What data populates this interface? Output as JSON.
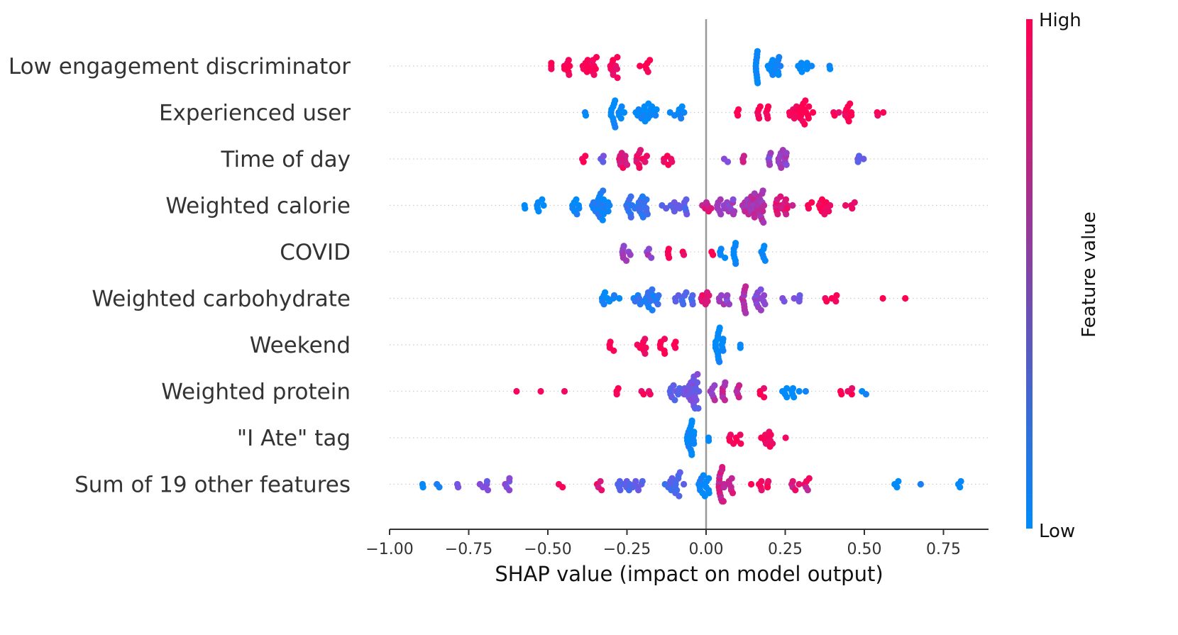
{
  "chart_data": {
    "type": "scatter",
    "subtype": "beeswarm",
    "title": "",
    "xlabel": "SHAP value (impact on model output)",
    "ylabel": "",
    "xlim": [
      -1.0,
      0.9
    ],
    "xticks": [
      -1.0,
      -0.75,
      -0.5,
      -0.25,
      0.0,
      0.25,
      0.5,
      0.75
    ],
    "xtick_labels": [
      "−1.00",
      "−0.75",
      "−0.50",
      "−0.25",
      "0.00",
      "0.25",
      "0.50",
      "0.75"
    ],
    "zero_line": true,
    "colorbar": {
      "title": "Feature value",
      "high_label": "High",
      "low_label": "Low",
      "low_color": "#008bfb",
      "high_color": "#ff0052"
    },
    "features": [
      {
        "name": "Low engagement discriminator",
        "clusters": [
          {
            "c": -0.49,
            "n": 3,
            "s": 0.003,
            "col": 1.0
          },
          {
            "c": -0.44,
            "n": 7,
            "s": 0.012,
            "col": 1.0
          },
          {
            "c": -0.37,
            "n": 14,
            "s": 0.025,
            "col": 1.0
          },
          {
            "c": -0.29,
            "n": 10,
            "s": 0.025,
            "col": 1.0
          },
          {
            "c": -0.19,
            "n": 6,
            "s": 0.02,
            "col": 1.0
          },
          {
            "c": 0.16,
            "n": 12,
            "s": 0.003,
            "col": 0.0
          },
          {
            "c": 0.22,
            "n": 14,
            "s": 0.025,
            "col": 0.0
          },
          {
            "c": 0.31,
            "n": 8,
            "s": 0.025,
            "col": 0.0
          },
          {
            "c": 0.39,
            "n": 2,
            "s": 0.003,
            "col": 0.0
          }
        ]
      },
      {
        "name": "Experienced user",
        "clusters": [
          {
            "c": -0.38,
            "n": 2,
            "s": 0.003,
            "col": 0.0
          },
          {
            "c": -0.28,
            "n": 16,
            "s": 0.025,
            "col": 0.0
          },
          {
            "c": -0.19,
            "n": 18,
            "s": 0.035,
            "col": 0.0
          },
          {
            "c": -0.09,
            "n": 8,
            "s": 0.025,
            "col": 0.0
          },
          {
            "c": 0.1,
            "n": 3,
            "s": 0.005,
            "col": 1.0
          },
          {
            "c": 0.18,
            "n": 10,
            "s": 0.025,
            "col": 1.0
          },
          {
            "c": 0.3,
            "n": 22,
            "s": 0.04,
            "col": 1.0
          },
          {
            "c": 0.43,
            "n": 12,
            "s": 0.03,
            "col": 1.0
          },
          {
            "c": 0.55,
            "n": 3,
            "s": 0.01,
            "col": 1.0
          }
        ]
      },
      {
        "name": "Time of day",
        "clusters": [
          {
            "c": -0.39,
            "n": 3,
            "s": 0.01,
            "col": 1.0
          },
          {
            "c": -0.33,
            "n": 3,
            "s": 0.01,
            "col": 0.45
          },
          {
            "c": -0.26,
            "n": 10,
            "s": 0.015,
            "col": 0.9
          },
          {
            "c": -0.2,
            "n": 10,
            "s": 0.02,
            "col": 0.9
          },
          {
            "c": -0.12,
            "n": 6,
            "s": 0.015,
            "col": 1.0
          },
          {
            "c": 0.06,
            "n": 2,
            "s": 0.01,
            "col": 0.45
          },
          {
            "c": 0.12,
            "n": 3,
            "s": 0.01,
            "col": 0.8
          },
          {
            "c": 0.2,
            "n": 5,
            "s": 0.008,
            "col": 0.55
          },
          {
            "c": 0.24,
            "n": 12,
            "s": 0.015,
            "col": 0.6
          },
          {
            "c": 0.49,
            "n": 4,
            "s": 0.015,
            "col": 0.45
          }
        ]
      },
      {
        "name": "Weighted calorie",
        "clusters": [
          {
            "c": -0.55,
            "n": 8,
            "s": 0.04,
            "col": 0.0
          },
          {
            "c": -0.42,
            "n": 8,
            "s": 0.02,
            "col": 0.05
          },
          {
            "c": -0.33,
            "n": 22,
            "s": 0.03,
            "col": 0.1
          },
          {
            "c": -0.22,
            "n": 24,
            "s": 0.04,
            "col": 0.2
          },
          {
            "c": -0.1,
            "n": 14,
            "s": 0.04,
            "col": 0.35
          },
          {
            "c": 0.0,
            "n": 6,
            "s": 0.02,
            "col": 0.8
          },
          {
            "c": 0.06,
            "n": 16,
            "s": 0.03,
            "col": 0.6
          },
          {
            "c": 0.15,
            "n": 32,
            "s": 0.035,
            "col": 0.7
          },
          {
            "c": 0.25,
            "n": 16,
            "s": 0.03,
            "col": 0.85
          },
          {
            "c": 0.36,
            "n": 14,
            "s": 0.04,
            "col": 1.0
          },
          {
            "c": 0.46,
            "n": 4,
            "s": 0.02,
            "col": 1.0
          }
        ]
      },
      {
        "name": "COVID",
        "clusters": [
          {
            "c": -0.25,
            "n": 8,
            "s": 0.015,
            "col": 0.6
          },
          {
            "c": -0.18,
            "n": 4,
            "s": 0.008,
            "col": 0.6
          },
          {
            "c": -0.12,
            "n": 4,
            "s": 0.003,
            "col": 1.0
          },
          {
            "c": -0.07,
            "n": 2,
            "s": 0.005,
            "col": 1.0
          },
          {
            "c": 0.02,
            "n": 2,
            "s": 0.005,
            "col": 1.0
          },
          {
            "c": 0.05,
            "n": 4,
            "s": 0.01,
            "col": 0.0
          },
          {
            "c": 0.09,
            "n": 8,
            "s": 0.004,
            "col": 0.0
          },
          {
            "c": 0.18,
            "n": 6,
            "s": 0.01,
            "col": 0.0
          }
        ]
      },
      {
        "name": "Weighted carbohydrate",
        "clusters": [
          {
            "c": -0.3,
            "n": 10,
            "s": 0.03,
            "col": 0.05
          },
          {
            "c": -0.19,
            "n": 20,
            "s": 0.04,
            "col": 0.15
          },
          {
            "c": -0.07,
            "n": 12,
            "s": 0.03,
            "col": 0.3
          },
          {
            "c": 0.0,
            "n": 8,
            "s": 0.02,
            "col": 0.85
          },
          {
            "c": 0.06,
            "n": 8,
            "s": 0.02,
            "col": 0.6
          },
          {
            "c": 0.12,
            "n": 10,
            "s": 0.006,
            "col": 0.7
          },
          {
            "c": 0.17,
            "n": 12,
            "s": 0.02,
            "col": 0.55
          },
          {
            "c": 0.27,
            "n": 6,
            "s": 0.03,
            "col": 0.45
          },
          {
            "c": 0.4,
            "n": 5,
            "s": 0.03,
            "col": 1.0
          },
          {
            "c": 0.56,
            "n": 1,
            "s": 0.003,
            "col": 1.0
          },
          {
            "c": 0.63,
            "n": 1,
            "s": 0.003,
            "col": 1.0
          }
        ]
      },
      {
        "name": "Weekend",
        "clusters": [
          {
            "c": -0.29,
            "n": 4,
            "s": 0.015,
            "col": 1.0
          },
          {
            "c": -0.2,
            "n": 8,
            "s": 0.02,
            "col": 1.0
          },
          {
            "c": -0.14,
            "n": 6,
            "s": 0.01,
            "col": 1.0
          },
          {
            "c": -0.1,
            "n": 3,
            "s": 0.005,
            "col": 1.0
          },
          {
            "c": 0.04,
            "n": 18,
            "s": 0.015,
            "col": 0.0
          },
          {
            "c": 0.1,
            "n": 2,
            "s": 0.01,
            "col": 0.0
          }
        ]
      },
      {
        "name": "Weighted protein",
        "clusters": [
          {
            "c": -0.6,
            "n": 1,
            "s": 0.003,
            "col": 1.0
          },
          {
            "c": -0.52,
            "n": 1,
            "s": 0.003,
            "col": 1.0
          },
          {
            "c": -0.45,
            "n": 1,
            "s": 0.003,
            "col": 1.0
          },
          {
            "c": -0.28,
            "n": 3,
            "s": 0.003,
            "col": 1.0
          },
          {
            "c": -0.19,
            "n": 4,
            "s": 0.015,
            "col": 0.9
          },
          {
            "c": -0.09,
            "n": 12,
            "s": 0.025,
            "col": 0.4
          },
          {
            "c": -0.04,
            "n": 22,
            "s": 0.02,
            "col": 0.45
          },
          {
            "c": 0.02,
            "n": 6,
            "s": 0.01,
            "col": 0.65
          },
          {
            "c": 0.08,
            "n": 12,
            "s": 0.03,
            "col": 0.75
          },
          {
            "c": 0.18,
            "n": 4,
            "s": 0.01,
            "col": 1.0
          },
          {
            "c": 0.28,
            "n": 10,
            "s": 0.04,
            "col": 0.0
          },
          {
            "c": 0.44,
            "n": 5,
            "s": 0.03,
            "col": 1.0
          },
          {
            "c": 0.5,
            "n": 2,
            "s": 0.01,
            "col": 0.0
          }
        ]
      },
      {
        "name": "\"I Ate\" tag",
        "clusters": [
          {
            "c": -0.05,
            "n": 18,
            "s": 0.012,
            "col": 0.0
          },
          {
            "c": 0.01,
            "n": 2,
            "s": 0.01,
            "col": 0.0
          },
          {
            "c": 0.09,
            "n": 8,
            "s": 0.02,
            "col": 1.0
          },
          {
            "c": 0.19,
            "n": 10,
            "s": 0.02,
            "col": 1.0
          },
          {
            "c": 0.25,
            "n": 1,
            "s": 0.003,
            "col": 1.0
          }
        ]
      },
      {
        "name": "Sum of 19 other features",
        "clusters": [
          {
            "c": -0.9,
            "n": 2,
            "s": 0.01,
            "col": 0.0
          },
          {
            "c": -0.85,
            "n": 2,
            "s": 0.01,
            "col": 0.1
          },
          {
            "c": -0.79,
            "n": 2,
            "s": 0.01,
            "col": 0.4
          },
          {
            "c": -0.7,
            "n": 5,
            "s": 0.02,
            "col": 0.5
          },
          {
            "c": -0.63,
            "n": 5,
            "s": 0.015,
            "col": 0.5
          },
          {
            "c": -0.46,
            "n": 2,
            "s": 0.01,
            "col": 1.0
          },
          {
            "c": -0.35,
            "n": 4,
            "s": 0.02,
            "col": 0.9
          },
          {
            "c": -0.24,
            "n": 16,
            "s": 0.04,
            "col": 0.35
          },
          {
            "c": -0.1,
            "n": 16,
            "s": 0.03,
            "col": 0.3
          },
          {
            "c": -0.01,
            "n": 14,
            "s": 0.02,
            "col": 0.05
          },
          {
            "c": 0.06,
            "n": 24,
            "s": 0.025,
            "col": 0.8
          },
          {
            "c": 0.17,
            "n": 8,
            "s": 0.03,
            "col": 1.0
          },
          {
            "c": 0.3,
            "n": 10,
            "s": 0.04,
            "col": 0.85
          },
          {
            "c": 0.6,
            "n": 3,
            "s": 0.01,
            "col": 0.0
          },
          {
            "c": 0.68,
            "n": 1,
            "s": 0.003,
            "col": 0.0
          },
          {
            "c": 0.8,
            "n": 3,
            "s": 0.008,
            "col": 0.0
          }
        ]
      }
    ]
  }
}
